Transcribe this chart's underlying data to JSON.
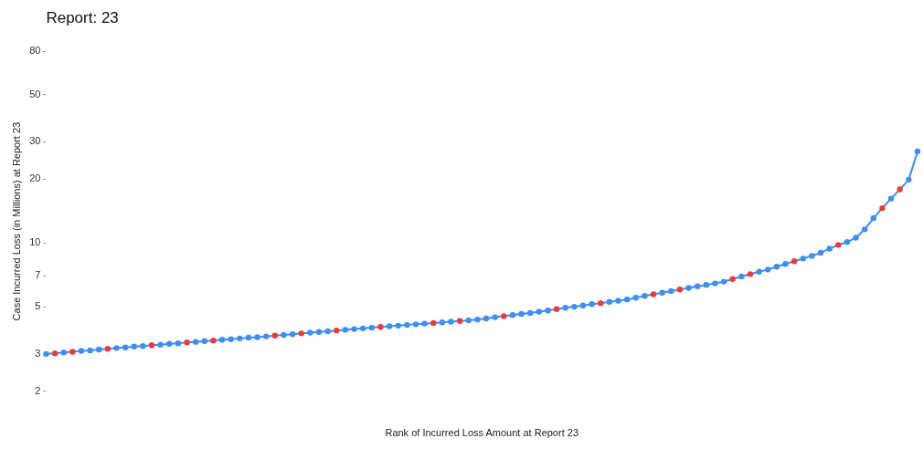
{
  "chart_data": {
    "type": "line",
    "title": "Report: 23",
    "xlabel": "Rank of Incurred Loss Amount at Report 23",
    "ylabel": "Case Incurred Loss (in Millions) at Report 23",
    "categories": [
      null,
      null,
      null,
      null,
      null,
      null,
      null,
      null,
      null,
      null,
      null,
      null,
      null,
      null,
      null,
      null,
      null,
      null,
      null,
      null,
      null,
      null,
      null,
      null,
      null,
      null,
      null,
      null,
      null,
      null,
      null,
      null,
      null,
      null,
      null,
      null,
      null,
      null,
      null,
      null,
      null,
      null,
      null,
      null,
      null,
      null,
      null,
      null,
      null,
      null,
      null,
      null,
      null,
      null,
      null,
      null,
      null,
      null,
      null,
      null,
      null,
      null,
      null,
      null,
      null,
      null,
      null,
      null,
      null,
      null,
      null,
      null,
      null,
      null,
      null,
      null,
      null,
      null,
      null,
      null,
      null,
      null,
      null,
      null,
      null,
      null,
      null,
      null,
      null,
      null,
      null,
      null,
      null,
      null,
      null,
      null,
      null,
      null,
      null,
      null
    ],
    "series": [
      {
        "color": "#3d8ef5",
        "values": [
          3.0,
          3.02,
          3.05,
          3.07,
          3.1,
          3.12,
          3.15,
          3.17,
          3.2,
          3.22,
          3.25,
          3.27,
          3.3,
          3.32,
          3.35,
          3.37,
          3.4,
          3.42,
          3.45,
          3.47,
          3.5,
          3.52,
          3.55,
          3.58,
          3.6,
          3.63,
          3.66,
          3.69,
          3.72,
          3.75,
          3.78,
          3.81,
          3.84,
          3.87,
          3.9,
          3.93,
          3.96,
          3.99,
          4.02,
          4.05,
          4.08,
          4.11,
          4.14,
          4.17,
          4.2,
          4.23,
          4.26,
          4.29,
          4.32,
          4.36,
          4.41,
          4.47,
          4.52,
          4.58,
          4.63,
          4.68,
          4.75,
          4.81,
          4.88,
          4.95,
          5.01,
          5.08,
          5.15,
          5.21,
          5.28,
          5.35,
          5.42,
          5.52,
          5.63,
          5.73,
          5.83,
          5.94,
          6.04,
          6.14,
          6.25,
          6.35,
          6.45,
          6.58,
          6.77,
          6.95,
          7.14,
          7.33,
          7.5,
          7.73,
          7.97,
          8.21,
          8.45,
          8.7,
          9.0,
          9.4,
          9.8,
          10.1,
          10.6,
          11.6,
          13.1,
          14.6,
          16.2,
          17.9,
          19.9,
          27
        ],
        "colors": [
          "#3d8ef5",
          "#f03a3a",
          "#3d8ef5",
          "#f03a3a",
          "#3d8ef5",
          "#3d8ef5",
          "#3d8ef5",
          "#f03a3a",
          "#3d8ef5",
          "#3d8ef5",
          "#3d8ef5",
          "#3d8ef5",
          "#f03a3a",
          "#3d8ef5",
          "#3d8ef5",
          "#3d8ef5",
          "#f03a3a",
          "#3d8ef5",
          "#3d8ef5",
          "#f03a3a",
          "#3d8ef5",
          "#3d8ef5",
          "#3d8ef5",
          "#3d8ef5",
          "#3d8ef5",
          "#3d8ef5",
          "#f03a3a",
          "#3d8ef5",
          "#3d8ef5",
          "#f03a3a",
          "#3d8ef5",
          "#3d8ef5",
          "#3d8ef5",
          "#f03a3a",
          "#3d8ef5",
          "#3d8ef5",
          "#3d8ef5",
          "#3d8ef5",
          "#f03a3a",
          "#3d8ef5",
          "#3d8ef5",
          "#3d8ef5",
          "#3d8ef5",
          "#3d8ef5",
          "#f03a3a",
          "#3d8ef5",
          "#3d8ef5",
          "#f03a3a",
          "#3d8ef5",
          "#3d8ef5",
          "#3d8ef5",
          "#3d8ef5",
          "#f03a3a",
          "#3d8ef5",
          "#3d8ef5",
          "#3d8ef5",
          "#3d8ef5",
          "#3d8ef5",
          "#f03a3a",
          "#3d8ef5",
          "#3d8ef5",
          "#3d8ef5",
          "#3d8ef5",
          "#f03a3a",
          "#3d8ef5",
          "#3d8ef5",
          "#3d8ef5",
          "#3d8ef5",
          "#3d8ef5",
          "#f03a3a",
          "#3d8ef5",
          "#3d8ef5",
          "#f03a3a",
          "#3d8ef5",
          "#3d8ef5",
          "#3d8ef5",
          "#3d8ef5",
          "#3d8ef5",
          "#f03a3a",
          "#3d8ef5",
          "#f03a3a",
          "#3d8ef5",
          "#3d8ef5",
          "#3d8ef5",
          "#3d8ef5",
          "#f03a3a",
          "#3d8ef5",
          "#3d8ef5",
          "#3d8ef5",
          "#3d8ef5",
          "#f03a3a",
          "#3d8ef5",
          "#3d8ef5",
          "#3d8ef5",
          "#3d8ef5",
          "#f03a3a",
          "#3d8ef5",
          "#f03a3a",
          "#3d8ef5",
          "#3d8ef5"
        ]
      }
    ],
    "log": "y",
    "ylim": [
      2,
      80
    ],
    "yticks": [
      2,
      3,
      5,
      7,
      10,
      20,
      30,
      50,
      80
    ],
    "tick_labels": "y",
    "marker": "circle"
  }
}
